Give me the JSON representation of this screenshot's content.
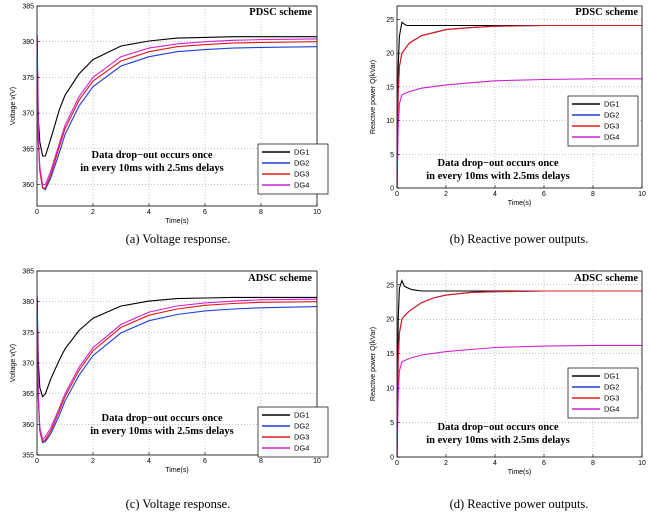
{
  "series_names": [
    "DG1",
    "DG2",
    "DG3",
    "DG4"
  ],
  "series_colors": [
    "#000000",
    "#1f3fd6",
    "#e01818",
    "#d021d0"
  ],
  "chart_data": [
    {
      "type": "line",
      "scheme": "PDSC scheme",
      "caption": "(a) Voltage response.",
      "xlabel": "Time(s)",
      "ylabel": "Voltage v(V)",
      "annotation": [
        "Data drop−out occurs once",
        "in every 10ms with 2.5ms delays"
      ],
      "xlim": [
        0,
        10
      ],
      "ylim": [
        357,
        385
      ],
      "xticks": [
        0,
        2,
        4,
        6,
        8,
        10
      ],
      "yticks": [
        360,
        365,
        370,
        375,
        380,
        385
      ],
      "legend": "bottom-right",
      "series": [
        {
          "name": "DG1",
          "x": [
            0,
            0.05,
            0.1,
            0.2,
            0.3,
            0.5,
            0.8,
            1,
            1.5,
            2,
            3,
            4,
            5,
            6,
            7,
            8,
            10
          ],
          "y": [
            381,
            369,
            366,
            364,
            364,
            366.5,
            370.5,
            372.5,
            375.5,
            377.5,
            379.4,
            380.1,
            380.5,
            380.6,
            380.7,
            380.7,
            380.7
          ]
        },
        {
          "name": "DG2",
          "x": [
            0,
            0.05,
            0.1,
            0.2,
            0.3,
            0.5,
            0.8,
            1,
            1.5,
            2,
            3,
            4,
            5,
            6,
            7,
            8,
            10
          ],
          "y": [
            381,
            366,
            362,
            359.5,
            359.3,
            361,
            364.5,
            367,
            371,
            373.7,
            376.6,
            377.9,
            378.6,
            378.9,
            379.1,
            379.2,
            379.3
          ]
        },
        {
          "name": "DG3",
          "x": [
            0,
            0.05,
            0.1,
            0.2,
            0.3,
            0.5,
            0.8,
            1,
            1.5,
            2,
            3,
            4,
            5,
            6,
            7,
            8,
            10
          ],
          "y": [
            381,
            366,
            362,
            359.5,
            359.5,
            361.5,
            365.3,
            367.8,
            371.8,
            374.5,
            377.3,
            378.6,
            379.3,
            379.6,
            379.8,
            379.9,
            380
          ]
        },
        {
          "name": "DG4",
          "x": [
            0,
            0.05,
            0.1,
            0.2,
            0.3,
            0.5,
            0.8,
            1,
            1.5,
            2,
            3,
            4,
            5,
            6,
            7,
            8,
            10
          ],
          "y": [
            381,
            366.5,
            362.5,
            360,
            360,
            362,
            365.8,
            368.3,
            372.3,
            375,
            377.9,
            379.1,
            379.7,
            380,
            380.2,
            380.3,
            380.4
          ]
        }
      ]
    },
    {
      "type": "line",
      "scheme": "PDSC scheme",
      "caption": "(b) Reactive power outputs.",
      "xlabel": "Time(s)",
      "ylabel": "Reactive power Q(kVar)",
      "annotation": [
        "Data drop−out occurs once",
        "in every 10ms with 2.5ms delays"
      ],
      "xlim": [
        0,
        10
      ],
      "ylim": [
        0,
        27
      ],
      "xticks": [
        0,
        2,
        4,
        6,
        8,
        10
      ],
      "yticks": [
        0,
        5,
        10,
        15,
        20,
        25
      ],
      "legend": "right",
      "series": [
        {
          "name": "DG1",
          "x": [
            0,
            0.05,
            0.1,
            0.2,
            0.3,
            0.4,
            0.6,
            1,
            2,
            4,
            6,
            8,
            10
          ],
          "y": [
            0,
            18,
            22.5,
            24.6,
            24.3,
            24.1,
            24.1,
            24.1,
            24.1,
            24.1,
            24.1,
            24.1,
            24.1
          ]
        },
        {
          "name": "DG2",
          "x": [
            0,
            0.05,
            0.1,
            0.2,
            0.3,
            0.5,
            1,
            2,
            3,
            4,
            6,
            8,
            10
          ],
          "y": [
            0,
            14,
            18,
            20,
            20.5,
            21.5,
            22.6,
            23.5,
            23.8,
            24,
            24.1,
            24.1,
            24.1
          ]
        },
        {
          "name": "DG3",
          "x": [
            0,
            0.05,
            0.1,
            0.2,
            0.3,
            0.5,
            1,
            2,
            3,
            4,
            6,
            8,
            10
          ],
          "y": [
            0,
            14,
            18,
            20,
            20.5,
            21.5,
            22.6,
            23.5,
            23.8,
            24,
            24.1,
            24.1,
            24.1
          ]
        },
        {
          "name": "DG4",
          "x": [
            0,
            0.05,
            0.1,
            0.2,
            0.3,
            0.5,
            1,
            2,
            3,
            4,
            6,
            8,
            10
          ],
          "y": [
            0,
            9,
            12.5,
            13.8,
            14,
            14.3,
            14.8,
            15.3,
            15.6,
            15.9,
            16.1,
            16.2,
            16.2
          ]
        }
      ]
    },
    {
      "type": "line",
      "scheme": "ADSC scheme",
      "caption": "(c) Voltage response.",
      "xlabel": "Time(s)",
      "ylabel": "Voltage v(V)",
      "annotation": [
        "Data drop−out occurs once",
        "in every 10ms with 2.5ms delays"
      ],
      "xlim": [
        0,
        10
      ],
      "ylim": [
        355,
        385
      ],
      "xticks": [
        0,
        2,
        4,
        6,
        8,
        10
      ],
      "yticks": [
        355,
        360,
        365,
        370,
        375,
        380,
        385
      ],
      "legend": "bottom-right",
      "series": [
        {
          "name": "DG1",
          "x": [
            0,
            0.05,
            0.1,
            0.2,
            0.3,
            0.5,
            0.8,
            1,
            1.5,
            2,
            3,
            4,
            5,
            6,
            7,
            8,
            10
          ],
          "y": [
            381,
            370,
            366,
            364.5,
            365,
            367.5,
            370.5,
            372.3,
            375.3,
            377.3,
            379.3,
            380.1,
            380.5,
            380.6,
            380.7,
            380.7,
            380.7
          ]
        },
        {
          "name": "DG2",
          "x": [
            0,
            0.05,
            0.1,
            0.2,
            0.3,
            0.5,
            0.8,
            1,
            1.5,
            2,
            3,
            4,
            5,
            6,
            7,
            8,
            10
          ],
          "y": [
            381,
            364,
            359,
            357,
            357.2,
            358.5,
            361.5,
            363.8,
            368,
            371.2,
            374.9,
            376.9,
            377.9,
            378.5,
            378.8,
            379,
            379.2
          ]
        },
        {
          "name": "DG3",
          "x": [
            0,
            0.05,
            0.1,
            0.2,
            0.3,
            0.5,
            0.8,
            1,
            1.5,
            2,
            3,
            4,
            5,
            6,
            7,
            8,
            10
          ],
          "y": [
            381,
            364,
            359,
            357.2,
            357.5,
            359,
            362.2,
            364.5,
            368.8,
            372,
            375.8,
            377.8,
            378.8,
            379.4,
            379.7,
            379.9,
            380
          ]
        },
        {
          "name": "DG4",
          "x": [
            0,
            0.05,
            0.1,
            0.2,
            0.3,
            0.5,
            0.8,
            1,
            1.5,
            2,
            3,
            4,
            5,
            6,
            7,
            8,
            10
          ],
          "y": [
            381,
            364.5,
            359.5,
            357.5,
            358,
            359.5,
            362.7,
            365,
            369.3,
            372.5,
            376.3,
            378.3,
            379.3,
            379.8,
            380.1,
            380.3,
            380.4
          ]
        }
      ]
    },
    {
      "type": "line",
      "scheme": "ADSC scheme",
      "caption": "(d) Reactive power outputs.",
      "xlabel": "Time(s)",
      "ylabel": "Reactive power Q(kVar)",
      "annotation": [
        "Data drop−out occurs once",
        "in every 10ms with 2.5ms delays"
      ],
      "xlim": [
        0,
        10
      ],
      "ylim": [
        0,
        27
      ],
      "xticks": [
        0,
        2,
        4,
        6,
        8,
        10
      ],
      "yticks": [
        0,
        5,
        10,
        15,
        20,
        25
      ],
      "legend": "right",
      "series": [
        {
          "name": "DG1",
          "x": [
            0,
            0.05,
            0.1,
            0.2,
            0.3,
            0.4,
            0.6,
            0.8,
            1,
            1.5,
            2,
            4,
            6,
            8,
            10
          ],
          "y": [
            0,
            20,
            24.5,
            25.6,
            24.8,
            24.6,
            24.3,
            24.2,
            24.1,
            24.1,
            24.1,
            24.1,
            24.1,
            24.1,
            24.1
          ]
        },
        {
          "name": "DG2",
          "x": [
            0,
            0.05,
            0.1,
            0.2,
            0.3,
            0.5,
            1,
            1.5,
            2,
            3,
            4,
            6,
            8,
            10
          ],
          "y": [
            0,
            14,
            18,
            20,
            20.5,
            21.2,
            22.4,
            23.1,
            23.5,
            23.9,
            24,
            24.1,
            24.1,
            24.1
          ]
        },
        {
          "name": "DG3",
          "x": [
            0,
            0.05,
            0.1,
            0.2,
            0.3,
            0.5,
            1,
            1.5,
            2,
            3,
            4,
            6,
            8,
            10
          ],
          "y": [
            0,
            14,
            18,
            20,
            20.5,
            21.2,
            22.4,
            23.1,
            23.5,
            23.9,
            24,
            24.1,
            24.1,
            24.1
          ]
        },
        {
          "name": "DG4",
          "x": [
            0,
            0.05,
            0.1,
            0.2,
            0.3,
            0.5,
            1,
            2,
            3,
            4,
            6,
            8,
            10
          ],
          "y": [
            0,
            9,
            12.5,
            13.8,
            14,
            14.3,
            14.8,
            15.3,
            15.6,
            15.9,
            16.1,
            16.2,
            16.2
          ]
        }
      ]
    }
  ]
}
